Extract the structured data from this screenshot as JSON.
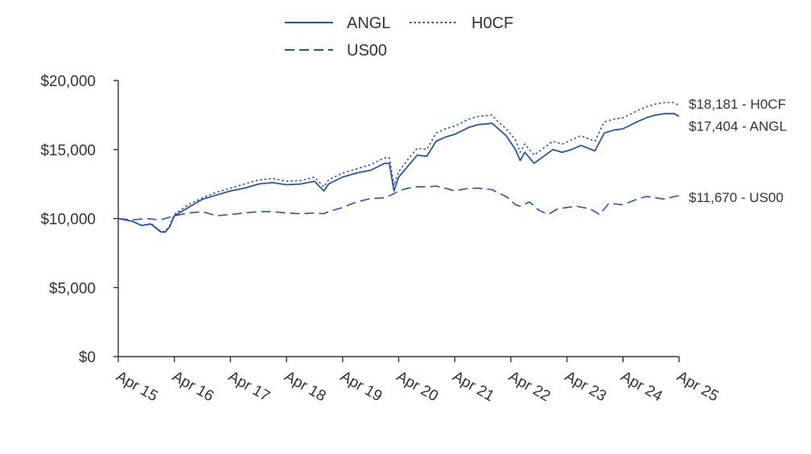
{
  "chart_data": {
    "type": "line",
    "title": "",
    "xlabel": "",
    "ylabel": "",
    "ylim": [
      0,
      20000
    ],
    "yticks": [
      0,
      5000,
      10000,
      15000,
      20000
    ],
    "ytick_labels": [
      "$0",
      "$5,000",
      "$10,000",
      "$15,000",
      "$20,000"
    ],
    "xticks": [
      "2015-04",
      "2016-04",
      "2017-04",
      "2018-04",
      "2019-04",
      "2020-04",
      "2021-04",
      "2022-04",
      "2023-04",
      "2024-04",
      "2025-04"
    ],
    "xtick_labels": [
      "Apr 15",
      "Apr 16",
      "Apr 17",
      "Apr 18",
      "Apr 19",
      "Apr 20",
      "Apr 21",
      "Apr 22",
      "Apr 23",
      "Apr 24",
      "Apr 25"
    ],
    "legend_position": "top",
    "grid": false,
    "color": "#2a55a5",
    "series": [
      {
        "name": "ANGL",
        "style": "solid",
        "end_label": "$17,404 - ANGL",
        "points": [
          [
            "2015-04",
            10000
          ],
          [
            "2015-07",
            9800
          ],
          [
            "2015-09",
            9500
          ],
          [
            "2015-11",
            9600
          ],
          [
            "2016-01",
            9050
          ],
          [
            "2016-02",
            9000
          ],
          [
            "2016-03",
            9400
          ],
          [
            "2016-04",
            10200
          ],
          [
            "2016-07",
            10800
          ],
          [
            "2016-10",
            11400
          ],
          [
            "2017-01",
            11700
          ],
          [
            "2017-04",
            12000
          ],
          [
            "2017-07",
            12200
          ],
          [
            "2017-10",
            12500
          ],
          [
            "2018-01",
            12600
          ],
          [
            "2018-04",
            12450
          ],
          [
            "2018-07",
            12500
          ],
          [
            "2018-10",
            12700
          ],
          [
            "2018-12",
            12000
          ],
          [
            "2019-01",
            12500
          ],
          [
            "2019-04",
            13000
          ],
          [
            "2019-07",
            13300
          ],
          [
            "2019-10",
            13500
          ],
          [
            "2020-01",
            14000
          ],
          [
            "2020-02",
            14000
          ],
          [
            "2020-03",
            12000
          ],
          [
            "2020-04",
            13000
          ],
          [
            "2020-06",
            13800
          ],
          [
            "2020-08",
            14600
          ],
          [
            "2020-10",
            14500
          ],
          [
            "2020-12",
            15600
          ],
          [
            "2021-02",
            15900
          ],
          [
            "2021-04",
            16100
          ],
          [
            "2021-07",
            16600
          ],
          [
            "2021-09",
            16800
          ],
          [
            "2021-12",
            16900
          ],
          [
            "2022-01",
            16600
          ],
          [
            "2022-03",
            16000
          ],
          [
            "2022-05",
            15000
          ],
          [
            "2022-06",
            14200
          ],
          [
            "2022-07",
            14800
          ],
          [
            "2022-09",
            14000
          ],
          [
            "2022-11",
            14500
          ],
          [
            "2023-01",
            15000
          ],
          [
            "2023-03",
            14800
          ],
          [
            "2023-05",
            15000
          ],
          [
            "2023-07",
            15300
          ],
          [
            "2023-10",
            14900
          ],
          [
            "2023-12",
            16200
          ],
          [
            "2024-02",
            16400
          ],
          [
            "2024-04",
            16500
          ],
          [
            "2024-07",
            17000
          ],
          [
            "2024-09",
            17300
          ],
          [
            "2024-11",
            17500
          ],
          [
            "2025-01",
            17600
          ],
          [
            "2025-03",
            17600
          ],
          [
            "2025-04",
            17404
          ]
        ]
      },
      {
        "name": "H0CF",
        "style": "dotted",
        "end_label": "$18,181 - H0CF",
        "points": [
          [
            "2015-04",
            10000
          ],
          [
            "2015-07",
            9800
          ],
          [
            "2015-09",
            9500
          ],
          [
            "2015-11",
            9650
          ],
          [
            "2016-01",
            9100
          ],
          [
            "2016-02",
            9050
          ],
          [
            "2016-03",
            9500
          ],
          [
            "2016-04",
            10300
          ],
          [
            "2016-07",
            11000
          ],
          [
            "2016-10",
            11500
          ],
          [
            "2017-01",
            11900
          ],
          [
            "2017-04",
            12200
          ],
          [
            "2017-07",
            12500
          ],
          [
            "2017-10",
            12800
          ],
          [
            "2018-01",
            12900
          ],
          [
            "2018-04",
            12700
          ],
          [
            "2018-07",
            12750
          ],
          [
            "2018-10",
            13000
          ],
          [
            "2018-12",
            12300
          ],
          [
            "2019-01",
            12800
          ],
          [
            "2019-04",
            13300
          ],
          [
            "2019-07",
            13600
          ],
          [
            "2019-10",
            13900
          ],
          [
            "2020-01",
            14400
          ],
          [
            "2020-02",
            14400
          ],
          [
            "2020-03",
            12400
          ],
          [
            "2020-04",
            13400
          ],
          [
            "2020-06",
            14300
          ],
          [
            "2020-08",
            15100
          ],
          [
            "2020-10",
            15000
          ],
          [
            "2020-12",
            16200
          ],
          [
            "2021-02",
            16500
          ],
          [
            "2021-04",
            16700
          ],
          [
            "2021-07",
            17200
          ],
          [
            "2021-09",
            17400
          ],
          [
            "2021-12",
            17500
          ],
          [
            "2022-01",
            17100
          ],
          [
            "2022-03",
            16500
          ],
          [
            "2022-05",
            15700
          ],
          [
            "2022-06",
            14800
          ],
          [
            "2022-07",
            15400
          ],
          [
            "2022-09",
            14600
          ],
          [
            "2022-11",
            15100
          ],
          [
            "2023-01",
            15600
          ],
          [
            "2023-03",
            15400
          ],
          [
            "2023-05",
            15700
          ],
          [
            "2023-07",
            16000
          ],
          [
            "2023-10",
            15600
          ],
          [
            "2023-12",
            17000
          ],
          [
            "2024-02",
            17200
          ],
          [
            "2024-04",
            17300
          ],
          [
            "2024-07",
            17800
          ],
          [
            "2024-09",
            18100
          ],
          [
            "2024-11",
            18300
          ],
          [
            "2025-01",
            18400
          ],
          [
            "2025-03",
            18400
          ],
          [
            "2025-04",
            18181
          ]
        ]
      },
      {
        "name": "US00",
        "style": "dashed",
        "end_label": "$11,670 - US00",
        "points": [
          [
            "2015-04",
            10000
          ],
          [
            "2015-07",
            9900
          ],
          [
            "2015-10",
            10000
          ],
          [
            "2016-01",
            9900
          ],
          [
            "2016-04",
            10200
          ],
          [
            "2016-07",
            10400
          ],
          [
            "2016-10",
            10500
          ],
          [
            "2017-01",
            10200
          ],
          [
            "2017-04",
            10300
          ],
          [
            "2017-07",
            10400
          ],
          [
            "2017-10",
            10500
          ],
          [
            "2018-01",
            10500
          ],
          [
            "2018-04",
            10400
          ],
          [
            "2018-07",
            10350
          ],
          [
            "2018-10",
            10400
          ],
          [
            "2018-12",
            10350
          ],
          [
            "2019-01",
            10500
          ],
          [
            "2019-04",
            10800
          ],
          [
            "2019-07",
            11200
          ],
          [
            "2019-10",
            11450
          ],
          [
            "2020-01",
            11500
          ],
          [
            "2020-03",
            11800
          ],
          [
            "2020-04",
            12000
          ],
          [
            "2020-06",
            12200
          ],
          [
            "2020-08",
            12300
          ],
          [
            "2020-10",
            12300
          ],
          [
            "2020-12",
            12350
          ],
          [
            "2021-02",
            12200
          ],
          [
            "2021-04",
            12000
          ],
          [
            "2021-07",
            12200
          ],
          [
            "2021-09",
            12200
          ],
          [
            "2021-12",
            12100
          ],
          [
            "2022-01",
            11900
          ],
          [
            "2022-03",
            11600
          ],
          [
            "2022-05",
            11000
          ],
          [
            "2022-06",
            10900
          ],
          [
            "2022-08",
            11200
          ],
          [
            "2022-10",
            10600
          ],
          [
            "2022-12",
            10300
          ],
          [
            "2023-02",
            10700
          ],
          [
            "2023-04",
            10800
          ],
          [
            "2023-06",
            10900
          ],
          [
            "2023-09",
            10700
          ],
          [
            "2023-11",
            10300
          ],
          [
            "2024-01",
            11100
          ],
          [
            "2024-04",
            11000
          ],
          [
            "2024-07",
            11400
          ],
          [
            "2024-09",
            11600
          ],
          [
            "2024-11",
            11500
          ],
          [
            "2025-01",
            11400
          ],
          [
            "2025-03",
            11600
          ],
          [
            "2025-04",
            11670
          ]
        ]
      }
    ]
  }
}
